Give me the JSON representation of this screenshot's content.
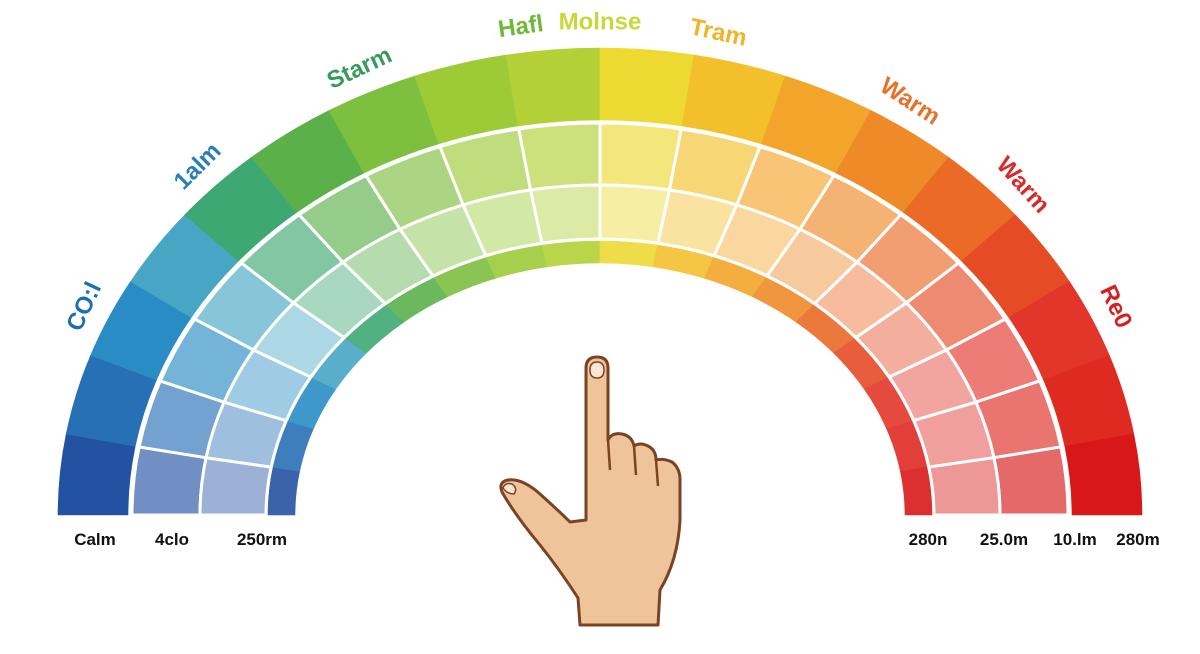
{
  "arc_labels": [
    {
      "text": "CO:l",
      "color": "#1f6fb0"
    },
    {
      "text": "1alm",
      "color": "#2a7fb8"
    },
    {
      "text": "Starm",
      "color": "#3a9a5c"
    },
    {
      "text": "Hafl",
      "color": "#6fb83a"
    },
    {
      "text": "Molnse",
      "color": "#c8d83a"
    },
    {
      "text": "Tram",
      "color": "#f0b428"
    },
    {
      "text": "Warm",
      "color": "#e8702a"
    },
    {
      "text": "Warm",
      "color": "#d82a2a"
    },
    {
      "text": "Re0",
      "color": "#d42020"
    }
  ],
  "bottom_labels_left": [
    "Calm",
    "4clo",
    "250rm"
  ],
  "bottom_labels_right": [
    "280n",
    "25.0m",
    "10.lm",
    "280m"
  ],
  "segment_colors": [
    "#2452a2",
    "#2770b6",
    "#2a8cc4",
    "#47a6c4",
    "#3ea872",
    "#5cb04a",
    "#7dbf3f",
    "#9ccb37",
    "#b3d036",
    "#ecd932",
    "#f3c02c",
    "#f2a52a",
    "#ee8a28",
    "#ea6a26",
    "#e54b25",
    "#e2362a",
    "#df2a22",
    "#d81818"
  ],
  "hand": {
    "fill": "#f0c49a",
    "outline": "#7a4424",
    "icon": "pointing-hand"
  }
}
